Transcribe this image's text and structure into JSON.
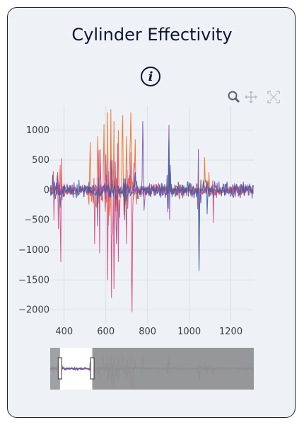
{
  "card": {
    "title": "Cylinder Effectivity",
    "info_glyph": "i"
  },
  "toolbar": {
    "icons": [
      "zoom-icon",
      "pan-icon",
      "autoscale-icon"
    ]
  },
  "colors": {
    "series_orange": "#f26b22",
    "series_pink": "#d6467f",
    "series_purple": "#8a4bb0",
    "series_blue": "#3a5f9a",
    "grid": "#dde1e6",
    "selector_shade": "#8f9194"
  },
  "chart_data": {
    "type": "line",
    "xlim": [
      333,
      1310
    ],
    "ylim": [
      -2230,
      1400
    ],
    "x_ticks": [
      400,
      600,
      800,
      1000,
      1200
    ],
    "y_ticks": [
      1000,
      500,
      0,
      -500,
      -1000,
      -1500,
      -2000
    ],
    "x_tick_labels": [
      "400",
      "600",
      "800",
      "1000",
      "1200"
    ],
    "y_tick_labels": [
      "1000",
      "500",
      "0",
      "−500",
      "−1000",
      "−1500",
      "−2000"
    ],
    "grid": true,
    "series": [
      {
        "color": "#f26b22",
        "peaks": [
          [
            380,
            420
          ],
          [
            525,
            800
          ],
          [
            560,
            900
          ],
          [
            590,
            1100
          ],
          [
            610,
            1300
          ],
          [
            625,
            1350
          ],
          [
            640,
            1150
          ],
          [
            660,
            1000
          ],
          [
            680,
            1250
          ],
          [
            700,
            900
          ],
          [
            720,
            1300
          ],
          [
            740,
            850
          ],
          [
            1075,
            550
          ],
          [
            1095,
            300
          ]
        ]
      },
      {
        "color": "#d6467f",
        "peaks": [
          [
            350,
            -500
          ],
          [
            372,
            -650
          ],
          [
            385,
            -1200
          ],
          [
            545,
            -900
          ],
          [
            570,
            -1050
          ],
          [
            610,
            -1500
          ],
          [
            628,
            -1800
          ],
          [
            638,
            -1650
          ],
          [
            660,
            -1200
          ],
          [
            700,
            -900
          ],
          [
            722,
            -1450
          ],
          [
            727,
            -2040
          ],
          [
            955,
            -150
          ],
          [
            1115,
            -550
          ]
        ]
      },
      {
        "color": "#8a4bb0",
        "peaks": [
          [
            370,
            300
          ],
          [
            600,
            600
          ],
          [
            650,
            -900
          ],
          [
            778,
            1150
          ],
          [
            902,
            1090
          ],
          [
            940,
            -80
          ],
          [
            1048,
            -1330
          ],
          [
            1090,
            150
          ]
        ]
      },
      {
        "color": "#3a5f9a",
        "peaks": [
          [
            345,
            250
          ],
          [
            380,
            -300
          ],
          [
            560,
            -600
          ],
          [
            630,
            500
          ],
          [
            690,
            -500
          ],
          [
            740,
            300
          ],
          [
            902,
            850
          ],
          [
            1048,
            -1350
          ],
          [
            1085,
            -400
          ],
          [
            1200,
            60
          ]
        ]
      }
    ],
    "range_selector": {
      "selected": [
        380,
        535
      ]
    }
  }
}
